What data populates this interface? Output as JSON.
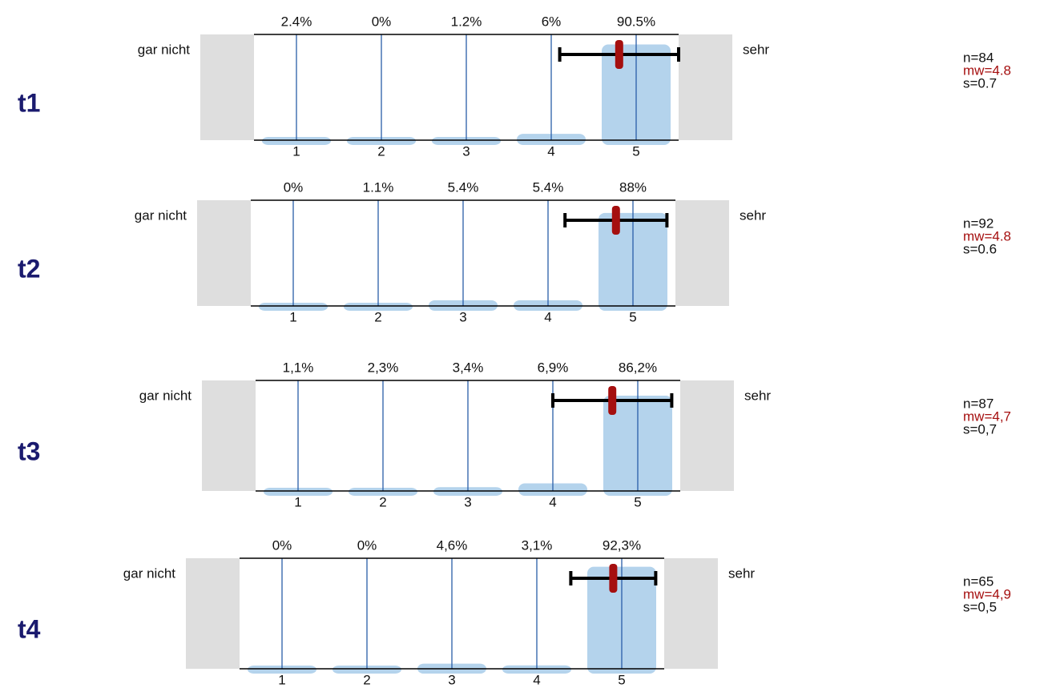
{
  "chart_data": [
    {
      "type": "bar",
      "title": "t1",
      "left_label": "gar nicht",
      "right_label": "sehr",
      "categories": [
        "1",
        "2",
        "3",
        "4",
        "5"
      ],
      "values": [
        2.4,
        0,
        1.2,
        6,
        90.5
      ],
      "value_labels": [
        "2.4%",
        "0%",
        "1.2%",
        "6%",
        "90.5%"
      ],
      "ylim": [
        0,
        100
      ],
      "n_label": "n=84",
      "mean": 4.8,
      "mean_label": "mw=4.8",
      "sd": 0.7,
      "sd_label": "s=0.7",
      "color": "#b4d3ec",
      "mean_color": "#a50f0f"
    },
    {
      "type": "bar",
      "title": "t2",
      "left_label": "gar nicht",
      "right_label": "sehr",
      "categories": [
        "1",
        "2",
        "3",
        "4",
        "5"
      ],
      "values": [
        0,
        1.1,
        5.4,
        5.4,
        88
      ],
      "value_labels": [
        "0%",
        "1.1%",
        "5.4%",
        "5.4%",
        "88%"
      ],
      "ylim": [
        0,
        100
      ],
      "n_label": "n=92",
      "mean": 4.8,
      "mean_label": "mw=4.8",
      "sd": 0.6,
      "sd_label": "s=0.6",
      "color": "#b4d3ec",
      "mean_color": "#a50f0f"
    },
    {
      "type": "bar",
      "title": "t3",
      "left_label": "gar nicht",
      "right_label": "sehr",
      "categories": [
        "1",
        "2",
        "3",
        "4",
        "5"
      ],
      "values": [
        1.1,
        2.3,
        3.4,
        6.9,
        86.2
      ],
      "value_labels": [
        "1,1%",
        "2,3%",
        "3,4%",
        "6,9%",
        "86,2%"
      ],
      "ylim": [
        0,
        100
      ],
      "n_label": "n=87",
      "mean": 4.7,
      "mean_label": "mw=4,7",
      "sd": 0.7,
      "sd_label": "s=0,7",
      "color": "#b4d3ec",
      "mean_color": "#a50f0f"
    },
    {
      "type": "bar",
      "title": "t4",
      "left_label": "gar nicht",
      "right_label": "sehr",
      "categories": [
        "1",
        "2",
        "3",
        "4",
        "5"
      ],
      "values": [
        0,
        0,
        4.6,
        3.1,
        92.3
      ],
      "value_labels": [
        "0%",
        "0%",
        "4,6%",
        "3,1%",
        "92,3%"
      ],
      "ylim": [
        0,
        100
      ],
      "n_label": "n=65",
      "mean": 4.9,
      "mean_label": "mw=4,9",
      "sd": 0.5,
      "sd_label": "s=0,5",
      "color": "#b4d3ec",
      "mean_color": "#a50f0f"
    }
  ]
}
